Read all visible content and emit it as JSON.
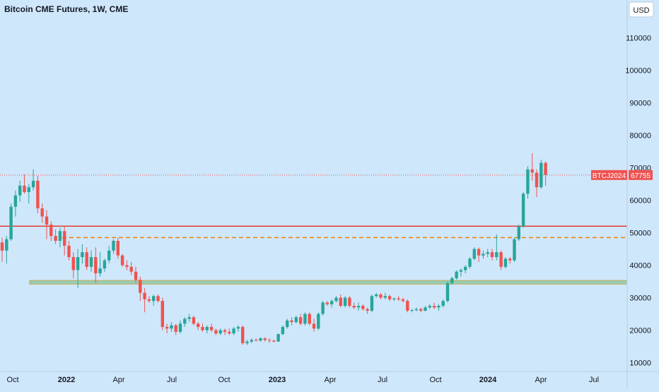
{
  "chart_data": {
    "type": "candlestick",
    "title": "Bitcoin CME Futures, 1W, CME",
    "currency": "USD",
    "ylim": [
      7000,
      118000
    ],
    "y_ticks": [
      10000,
      20000,
      30000,
      40000,
      50000,
      60000,
      70000,
      80000,
      90000,
      100000,
      110000
    ],
    "x_ticks": [
      "Oct",
      "2022",
      "Apr",
      "Jul",
      "Oct",
      "2023",
      "Apr",
      "Jul",
      "Oct",
      "2024",
      "Apr",
      "Jul"
    ],
    "x_tick_bold": [
      false,
      true,
      false,
      false,
      false,
      true,
      false,
      false,
      false,
      true,
      false,
      false
    ],
    "symbol_label": "BTCJ2024",
    "last_price": 67755,
    "last_price_label": "67755",
    "colors": {
      "up": "#26a69a",
      "down": "#ef5350",
      "background": "#cfe7fb",
      "resistance": "#e53935",
      "dashed": "#f57c00",
      "support_zone": "#7ec8a0"
    },
    "levels": {
      "resistance_line": 52000,
      "dashed_line": 48500,
      "support_zone": [
        34200,
        35300
      ]
    },
    "candles": [
      [
        47000,
        48500,
        41000,
        44500
      ],
      [
        44500,
        49000,
        40500,
        48000
      ],
      [
        48000,
        59000,
        47500,
        58000
      ],
      [
        58000,
        63000,
        55000,
        61500
      ],
      [
        61500,
        66000,
        59500,
        64500
      ],
      [
        64500,
        68000,
        62000,
        62500
      ],
      [
        62500,
        65000,
        59000,
        64000
      ],
      [
        64000,
        69500,
        63000,
        66000
      ],
      [
        66000,
        67500,
        56000,
        57500
      ],
      [
        57500,
        59000,
        53000,
        55000
      ],
      [
        55000,
        57000,
        48000,
        52500
      ],
      [
        52500,
        53500,
        47500,
        49000
      ],
      [
        49000,
        51000,
        46500,
        47500
      ],
      [
        47500,
        51500,
        45500,
        50500
      ],
      [
        50500,
        52000,
        43000,
        46000
      ],
      [
        46000,
        47500,
        41500,
        42500
      ],
      [
        42500,
        44000,
        36000,
        38500
      ],
      [
        38500,
        45000,
        33000,
        42500
      ],
      [
        42500,
        46500,
        40500,
        44000
      ],
      [
        44000,
        45500,
        38500,
        39500
      ],
      [
        39500,
        44500,
        38000,
        42500
      ],
      [
        42500,
        45500,
        34500,
        37500
      ],
      [
        37500,
        44000,
        36500,
        39000
      ],
      [
        39000,
        42000,
        38000,
        41500
      ],
      [
        41500,
        46000,
        40500,
        44500
      ],
      [
        44500,
        48000,
        43500,
        47500
      ],
      [
        47500,
        48500,
        42000,
        43000
      ],
      [
        43000,
        43500,
        39500,
        40000
      ],
      [
        40000,
        41500,
        38500,
        39500
      ],
      [
        39500,
        41000,
        37000,
        38000
      ],
      [
        38000,
        39500,
        34500,
        35500
      ],
      [
        35500,
        36500,
        29000,
        31500
      ],
      [
        31500,
        33000,
        25500,
        29500
      ],
      [
        29500,
        30500,
        28500,
        29000
      ],
      [
        29000,
        31000,
        27500,
        30500
      ],
      [
        30500,
        31000,
        28500,
        29000
      ],
      [
        29000,
        30000,
        20000,
        21000
      ],
      [
        21000,
        22000,
        19000,
        20500
      ],
      [
        20500,
        22500,
        19500,
        21500
      ],
      [
        21500,
        22000,
        18500,
        19500
      ],
      [
        19500,
        23000,
        19000,
        22000
      ],
      [
        22000,
        24000,
        21000,
        23500
      ],
      [
        23500,
        25000,
        22500,
        24000
      ],
      [
        24000,
        24500,
        21500,
        22000
      ],
      [
        22000,
        22500,
        20000,
        21000
      ],
      [
        21000,
        22000,
        19500,
        20000
      ],
      [
        20000,
        21500,
        19000,
        21000
      ],
      [
        21000,
        22000,
        19500,
        20000
      ],
      [
        20000,
        20500,
        18500,
        19000
      ],
      [
        19000,
        20500,
        18500,
        20000
      ],
      [
        20000,
        20500,
        18500,
        19500
      ],
      [
        19500,
        20500,
        18500,
        19000
      ],
      [
        19000,
        21000,
        18500,
        20500
      ],
      [
        20500,
        21500,
        19500,
        21000
      ],
      [
        21000,
        21500,
        15500,
        16000
      ],
      [
        16000,
        17000,
        15500,
        16500
      ],
      [
        16500,
        17500,
        16000,
        17000
      ],
      [
        17000,
        17500,
        16500,
        16800
      ],
      [
        16800,
        17800,
        16500,
        17500
      ],
      [
        17500,
        17800,
        16500,
        17000
      ],
      [
        17000,
        17500,
        16200,
        16800
      ],
      [
        16800,
        17000,
        16300,
        16500
      ],
      [
        16500,
        19000,
        16400,
        18800
      ],
      [
        18800,
        21500,
        18500,
        21000
      ],
      [
        21000,
        23500,
        20500,
        23000
      ],
      [
        23000,
        24000,
        21500,
        22500
      ],
      [
        22500,
        24500,
        22000,
        24000
      ],
      [
        24000,
        25000,
        21500,
        22000
      ],
      [
        22000,
        25500,
        21500,
        25000
      ],
      [
        25000,
        25500,
        21500,
        22000
      ],
      [
        22000,
        23500,
        19500,
        20500
      ],
      [
        20500,
        25500,
        20000,
        25000
      ],
      [
        25000,
        29000,
        24500,
        28500
      ],
      [
        28500,
        29000,
        27500,
        28000
      ],
      [
        28000,
        29500,
        27000,
        29000
      ],
      [
        29000,
        30500,
        28500,
        30000
      ],
      [
        30000,
        31000,
        27000,
        27500
      ],
      [
        27500,
        30500,
        27000,
        30000
      ],
      [
        30000,
        30500,
        27000,
        27500
      ],
      [
        27500,
        28500,
        26500,
        27000
      ],
      [
        27000,
        28500,
        26000,
        27500
      ],
      [
        27500,
        28000,
        26000,
        26500
      ],
      [
        26500,
        27000,
        25000,
        26000
      ],
      [
        26000,
        31000,
        25500,
        30500
      ],
      [
        30500,
        31500,
        30000,
        31000
      ],
      [
        31000,
        31500,
        29500,
        30000
      ],
      [
        30000,
        31500,
        29500,
        30500
      ],
      [
        30500,
        31000,
        29000,
        29500
      ],
      [
        29500,
        30000,
        29000,
        29800
      ],
      [
        29800,
        30500,
        29000,
        29500
      ],
      [
        29500,
        30000,
        28500,
        29000
      ],
      [
        29000,
        29500,
        25500,
        26000
      ],
      [
        26000,
        26500,
        25500,
        26200
      ],
      [
        26200,
        27000,
        25800,
        26500
      ],
      [
        26500,
        27000,
        25500,
        26000
      ],
      [
        26000,
        27500,
        25800,
        27000
      ],
      [
        27000,
        28000,
        26500,
        27500
      ],
      [
        27500,
        28500,
        26500,
        27000
      ],
      [
        27000,
        28000,
        26000,
        27500
      ],
      [
        27500,
        29500,
        27000,
        29000
      ],
      [
        29000,
        35000,
        28500,
        34500
      ],
      [
        34500,
        36500,
        34000,
        36000
      ],
      [
        36000,
        38500,
        35500,
        38000
      ],
      [
        38000,
        39000,
        36500,
        38500
      ],
      [
        38500,
        40000,
        37500,
        39500
      ],
      [
        39500,
        42500,
        39000,
        42000
      ],
      [
        42000,
        45500,
        41500,
        45000
      ],
      [
        45000,
        45500,
        41000,
        43000
      ],
      [
        43000,
        44500,
        42000,
        43500
      ],
      [
        43500,
        45000,
        42500,
        44000
      ],
      [
        44000,
        45000,
        41500,
        42500
      ],
      [
        42500,
        49500,
        41500,
        44000
      ],
      [
        44000,
        44500,
        38500,
        39500
      ],
      [
        39500,
        42500,
        39000,
        42000
      ],
      [
        42000,
        42500,
        40500,
        41500
      ],
      [
        41500,
        48500,
        41000,
        48000
      ],
      [
        48000,
        52500,
        47500,
        52000
      ],
      [
        52000,
        62500,
        51500,
        62000
      ],
      [
        62000,
        70500,
        60500,
        69500
      ],
      [
        69500,
        74500,
        66000,
        68500
      ],
      [
        68500,
        69500,
        61000,
        64000
      ],
      [
        64000,
        72500,
        63500,
        71500
      ],
      [
        71500,
        72000,
        64500,
        67755
      ]
    ]
  }
}
